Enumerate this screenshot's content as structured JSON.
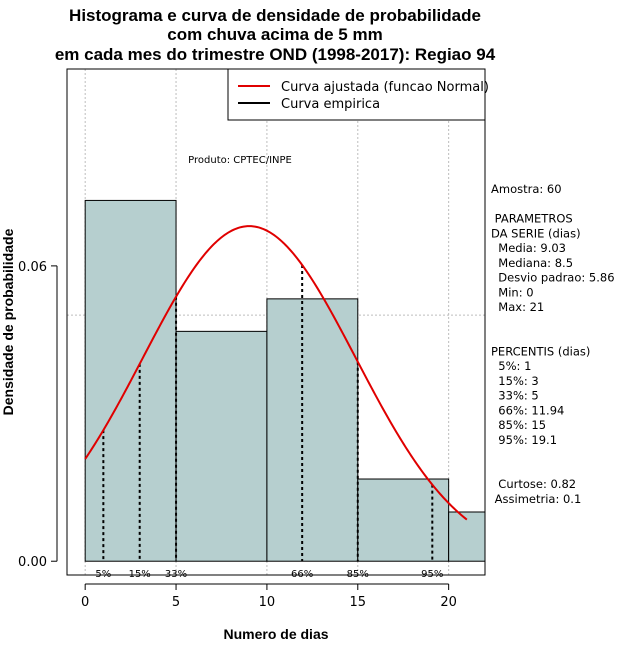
{
  "chart_data": {
    "type": "bar",
    "title_lines": [
      "Histograma e curva de densidade de probabilidade",
      "com chuva acima de 5 mm",
      "em cada mes do trimestre OND (1998-2017): Regiao 94"
    ],
    "xlabel": "Numero de dias",
    "ylabel": "Densidade de probabilidade",
    "xlim": [
      -1,
      22
    ],
    "ylim": [
      -0.0028,
      0.1
    ],
    "xticks": [
      0,
      5,
      10,
      15,
      20
    ],
    "xtick_labels": [
      "0",
      "5",
      "10",
      "15",
      "20"
    ],
    "yticks": [
      0.0,
      0.06
    ],
    "ytick_labels": [
      "0.00",
      "0.06"
    ],
    "grid_x": [
      0,
      5,
      10,
      15,
      20
    ],
    "grid_y": [
      0.05,
      0.1
    ],
    "bins": [
      {
        "start": 0,
        "end": 5,
        "density": 0.0733
      },
      {
        "start": 5,
        "end": 10,
        "density": 0.0467
      },
      {
        "start": 10,
        "end": 15,
        "density": 0.0533
      },
      {
        "start": 15,
        "end": 20,
        "density": 0.0167
      },
      {
        "start": 20,
        "end": 22,
        "density": 0.01
      }
    ],
    "bar_color": "#b6cfcf",
    "normal_curve": {
      "mean": 9.03,
      "sd": 5.86,
      "x_from": 0,
      "x_to": 21,
      "color": "#e00000"
    },
    "percentile_lines": [
      {
        "label": "5%",
        "x": 1
      },
      {
        "label": "15%",
        "x": 3
      },
      {
        "label": "33%",
        "x": 5
      },
      {
        "label": "66%",
        "x": 11.94
      },
      {
        "label": "85%",
        "x": 15
      },
      {
        "label": "95%",
        "x": 19.1
      }
    ],
    "legend": {
      "position": "top-right",
      "entries": [
        {
          "label": "Curva ajustada (funcao Normal)",
          "color": "#e00000"
        },
        {
          "label": "Curva empirica",
          "color": "#000000"
        }
      ]
    },
    "annotation": "Produto: CPTEC/INPE"
  },
  "side_panel": {
    "lines": [
      "Amostra: 60",
      "",
      " PARAMETROS",
      "DA SERIE (dias)",
      "  Media: 9.03",
      "  Mediana: 8.5",
      "  Desvio padrao: 5.86",
      "  Min: 0",
      "  Max: 21",
      "",
      "",
      "PERCENTIS (dias)",
      "  5%: 1",
      "  15%: 3",
      "  33%: 5",
      "  66%: 11.94",
      "  85%: 15",
      "  95%: 19.1",
      "",
      "",
      "  Curtose: 0.82",
      " Assimetria: 0.1"
    ]
  }
}
